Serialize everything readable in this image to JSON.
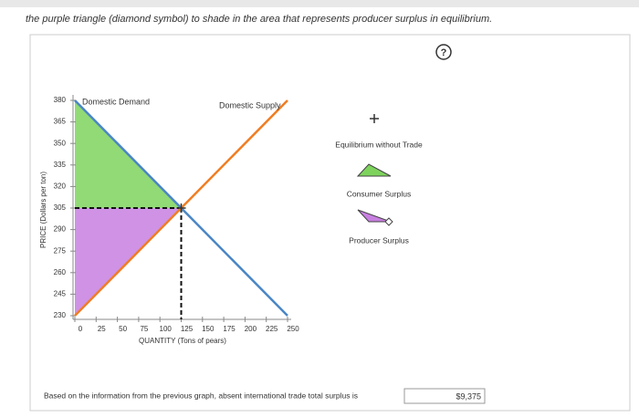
{
  "instruction": "the purple triangle (diamond symbol) to shade in the area that represents producer surplus in equilibrium.",
  "help": "?",
  "chart_data": {
    "type": "line",
    "xlabel": "QUANTITY (Tons of pears)",
    "ylabel": "PRICE (Dollars per ton)",
    "xlim": [
      0,
      250
    ],
    "ylim": [
      230,
      380
    ],
    "xticks": [
      0,
      25,
      50,
      75,
      100,
      125,
      150,
      175,
      200,
      225,
      250
    ],
    "yticks": [
      230,
      245,
      260,
      275,
      290,
      305,
      320,
      335,
      350,
      365,
      380
    ],
    "series": [
      {
        "name": "Domestic Demand",
        "color": "#4a86c5",
        "x": [
          0,
          250
        ],
        "values": [
          380,
          230
        ]
      },
      {
        "name": "Domestic Supply",
        "color": "#f07d22",
        "x": [
          0,
          250
        ],
        "values": [
          230,
          380
        ]
      }
    ],
    "areas": [
      {
        "name": "Consumer Surplus",
        "color": "#7ed35d",
        "x": [
          0,
          125,
          0
        ],
        "values": [
          380,
          305,
          305
        ]
      },
      {
        "name": "Producer Surplus",
        "color": "#c77fe0",
        "x": [
          0,
          125,
          0
        ],
        "values": [
          305,
          305,
          230
        ]
      }
    ],
    "equilibrium": {
      "name": "Equilibrium without Trade",
      "x": 125,
      "value": 305
    }
  },
  "question": "Based on the information from the previous graph, absent international trade total surplus is",
  "answer": "$9,375"
}
